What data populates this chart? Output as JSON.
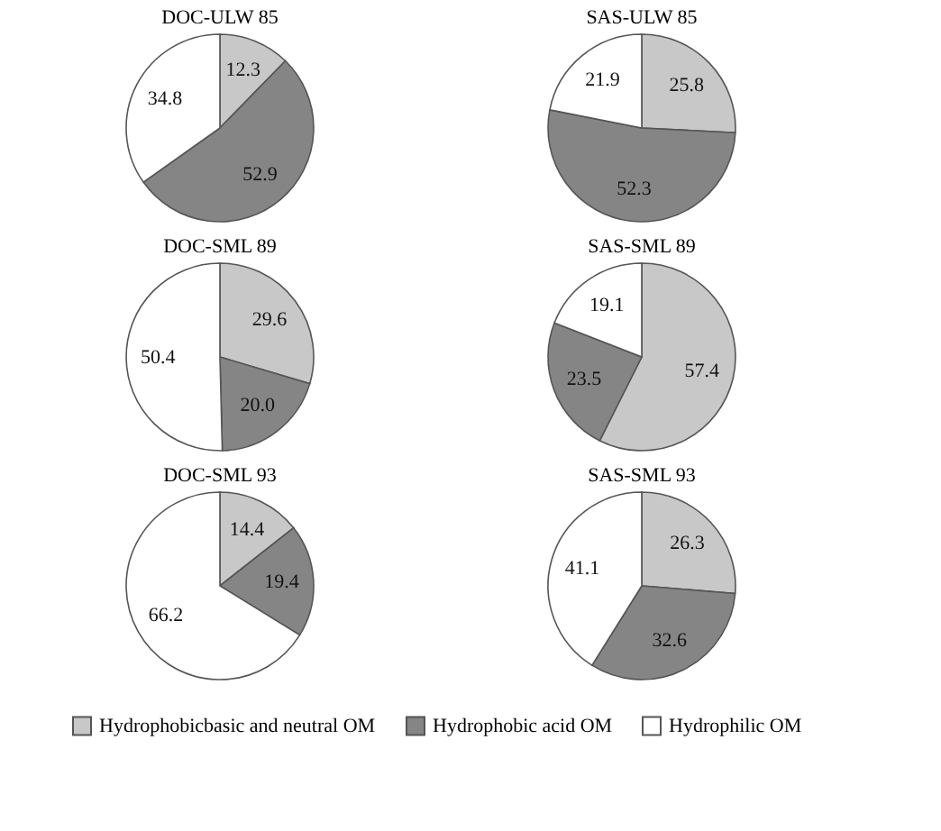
{
  "chart_data": [
    {
      "type": "pie",
      "title": "DOC-ULW 85",
      "categories": [
        "Hydrophobicbasic and neutral OM",
        "Hydrophobic acid OM",
        "Hydrophilic OM"
      ],
      "values": [
        12.3,
        52.9,
        34.8
      ],
      "colors": [
        "#c8c8c8",
        "#858585",
        "#ffffff"
      ],
      "value_labels": [
        "12.3",
        "52.9",
        "34.8"
      ],
      "legend": "bottom"
    },
    {
      "type": "pie",
      "title": "SAS-ULW 85",
      "categories": [
        null,
        null,
        null
      ],
      "values": [
        25.8,
        52.3,
        21.9
      ],
      "colors": [
        "#c8c8c8",
        "#858585",
        "#ffffff"
      ],
      "value_labels": [
        "25.8",
        "52.3",
        "21.9"
      ]
    },
    {
      "type": "pie",
      "title": "DOC-SML 89",
      "categories": [
        null,
        null,
        null
      ],
      "values": [
        29.6,
        20.0,
        50.4
      ],
      "colors": [
        "#c8c8c8",
        "#858585",
        "#ffffff"
      ],
      "value_labels": [
        "29.6",
        "20.0",
        "50.4"
      ]
    },
    {
      "type": "pie",
      "title": "SAS-SML 89",
      "categories": [
        null,
        null,
        null
      ],
      "values": [
        57.4,
        23.5,
        19.1
      ],
      "colors": [
        "#c8c8c8",
        "#858585",
        "#ffffff"
      ],
      "value_labels": [
        "57.4",
        "23.5",
        "19.1"
      ]
    },
    {
      "type": "pie",
      "title": "DOC-SML 93",
      "categories": [
        null,
        null,
        null
      ],
      "values": [
        14.4,
        19.4,
        66.2
      ],
      "colors": [
        "#c8c8c8",
        "#858585",
        "#ffffff"
      ],
      "value_labels": [
        "14.4",
        "19.4",
        "66.2"
      ]
    },
    {
      "type": "pie",
      "title": "SAS-SML 93",
      "categories": [
        null,
        null,
        null
      ],
      "values": [
        26.3,
        32.6,
        41.1
      ],
      "colors": [
        "#c8c8c8",
        "#858585",
        "#ffffff"
      ],
      "value_labels": [
        "26.3",
        "32.6",
        "41.1"
      ]
    }
  ]
}
